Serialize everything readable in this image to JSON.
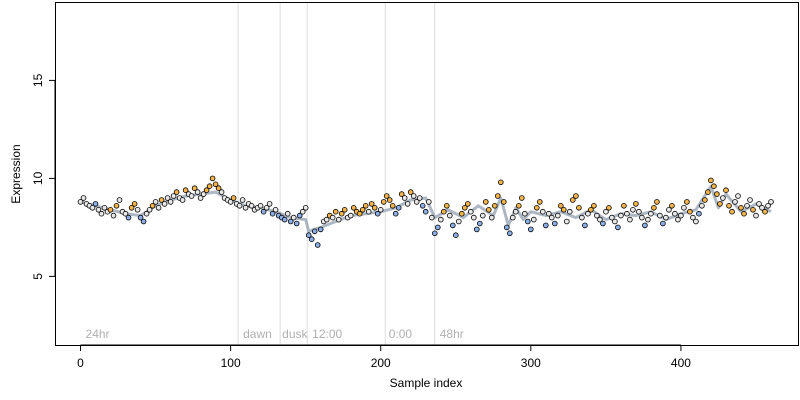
{
  "chart_data": {
    "type": "scatter",
    "title": "",
    "xlabel": "Sample index",
    "ylabel": "Expression",
    "xlim": [
      -17,
      478
    ],
    "ylim": [
      1.5,
      19
    ],
    "x_ticks": [
      0,
      100,
      200,
      300,
      400
    ],
    "y_ticks": [
      5,
      10,
      15
    ],
    "phase_boundaries": [
      105,
      133,
      151,
      203,
      236
    ],
    "phase_labels": [
      {
        "text": "24hr",
        "x": 2
      },
      {
        "text": "dawn",
        "x": 107
      },
      {
        "text": "dusk",
        "x": 133
      },
      {
        "text": "12:00",
        "x": 153
      },
      {
        "text": "0:00",
        "x": 204
      },
      {
        "text": "48hr",
        "x": 238
      }
    ],
    "colors": {
      "up": "#f5b449",
      "down": "#8caee6",
      "neutral": "#e8e8e8",
      "trend": "#9eaab8",
      "boundary": "#dcdcdc",
      "point_stroke": "#000000"
    },
    "trend_x": [
      0,
      10,
      20,
      30,
      40,
      50,
      60,
      70,
      80,
      90,
      100,
      110,
      120,
      130,
      140,
      150,
      152,
      160,
      170,
      180,
      190,
      200,
      210,
      220,
      230,
      236,
      245,
      255,
      265,
      275,
      280,
      285,
      290,
      295,
      300,
      310,
      320,
      330,
      340,
      350,
      360,
      370,
      380,
      390,
      400,
      410,
      420,
      425,
      430,
      440,
      450,
      460
    ],
    "trend_y": [
      8.8,
      8.6,
      8.4,
      8.2,
      8.1,
      8.6,
      8.9,
      9.1,
      9.2,
      9.3,
      8.9,
      8.6,
      8.5,
      8.3,
      8.0,
      7.9,
      7.3,
      7.5,
      7.8,
      8.1,
      8.2,
      8.3,
      8.5,
      8.9,
      9.0,
      8.0,
      8.4,
      8.0,
      8.6,
      8.1,
      9.0,
      7.6,
      8.5,
      7.9,
      8.3,
      8.1,
      8.3,
      8.0,
      8.4,
      7.9,
      8.2,
      8.1,
      8.3,
      7.9,
      8.2,
      8.4,
      9.6,
      8.5,
      9.2,
      8.3,
      8.7,
      8.3
    ],
    "points_x": [
      0,
      2,
      4,
      6,
      8,
      10,
      12,
      14,
      16,
      18,
      20,
      22,
      24,
      26,
      28,
      30,
      32,
      34,
      36,
      38,
      40,
      42,
      44,
      46,
      48,
      50,
      52,
      54,
      56,
      58,
      60,
      62,
      64,
      66,
      68,
      70,
      72,
      74,
      76,
      78,
      80,
      82,
      84,
      86,
      88,
      90,
      92,
      94,
      96,
      98,
      100,
      102,
      104,
      106,
      108,
      110,
      112,
      114,
      116,
      118,
      120,
      122,
      124,
      126,
      128,
      130,
      132,
      134,
      136,
      138,
      140,
      142,
      144,
      146,
      148,
      150,
      152,
      154,
      156,
      158,
      160,
      162,
      164,
      166,
      168,
      170,
      172,
      174,
      176,
      178,
      180,
      182,
      184,
      186,
      188,
      190,
      192,
      194,
      196,
      198,
      200,
      202,
      204,
      206,
      208,
      210,
      212,
      214,
      216,
      218,
      220,
      222,
      224,
      226,
      228,
      230,
      232,
      234,
      236,
      238,
      240,
      242,
      244,
      246,
      248,
      250,
      252,
      254,
      256,
      258,
      260,
      262,
      264,
      266,
      268,
      270,
      272,
      274,
      276,
      278,
      280,
      282,
      284,
      286,
      288,
      290,
      292,
      294,
      296,
      298,
      300,
      302,
      304,
      306,
      308,
      310,
      312,
      314,
      316,
      318,
      320,
      322,
      324,
      326,
      328,
      330,
      332,
      334,
      336,
      338,
      340,
      342,
      344,
      346,
      348,
      350,
      352,
      354,
      356,
      358,
      360,
      362,
      364,
      366,
      368,
      370,
      372,
      374,
      376,
      378,
      380,
      382,
      384,
      386,
      388,
      390,
      392,
      394,
      396,
      398,
      400,
      402,
      404,
      406,
      408,
      410,
      412,
      414,
      416,
      418,
      420,
      422,
      424,
      426,
      428,
      430,
      432,
      434,
      436,
      438,
      440,
      442,
      444,
      446,
      448,
      450,
      452,
      454,
      456,
      458,
      460
    ],
    "points_y": [
      8.8,
      9.0,
      8.7,
      8.6,
      8.5,
      8.7,
      8.4,
      8.2,
      8.5,
      8.3,
      8.4,
      8.1,
      8.6,
      8.9,
      8.3,
      8.2,
      8.0,
      8.5,
      8.7,
      8.4,
      8.0,
      7.8,
      8.2,
      8.4,
      8.6,
      8.8,
      8.5,
      8.9,
      8.7,
      9.0,
      8.8,
      9.1,
      9.3,
      9.0,
      8.9,
      9.4,
      9.2,
      9.1,
      9.5,
      9.3,
      9.0,
      9.2,
      9.4,
      9.6,
      10.0,
      9.7,
      9.5,
      9.3,
      9.0,
      8.9,
      8.8,
      9.0,
      8.7,
      8.6,
      8.9,
      8.5,
      8.7,
      8.6,
      8.4,
      8.5,
      8.6,
      8.3,
      8.5,
      8.7,
      8.2,
      8.4,
      8.1,
      8.0,
      7.9,
      8.2,
      7.8,
      8.0,
      7.7,
      8.1,
      8.3,
      8.5,
      7.1,
      6.9,
      7.3,
      6.6,
      7.4,
      7.8,
      7.9,
      8.1,
      8.0,
      8.3,
      7.9,
      8.2,
      8.4,
      8.0,
      8.1,
      8.5,
      8.3,
      8.2,
      8.4,
      8.6,
      8.3,
      8.7,
      8.5,
      8.2,
      8.4,
      8.8,
      9.1,
      8.9,
      8.6,
      8.2,
      8.5,
      9.2,
      9.0,
      8.7,
      9.3,
      9.1,
      8.8,
      9.0,
      8.6,
      8.3,
      8.8,
      8.0,
      7.2,
      7.5,
      7.9,
      8.3,
      8.6,
      8.1,
      7.6,
      7.1,
      7.8,
      8.2,
      8.5,
      8.7,
      8.3,
      8.0,
      7.4,
      7.7,
      8.1,
      8.8,
      8.4,
      8.0,
      8.6,
      9.1,
      9.8,
      8.8,
      7.5,
      7.2,
      8.0,
      8.3,
      8.6,
      9.0,
      8.2,
      7.8,
      7.4,
      7.9,
      8.5,
      8.8,
      8.3,
      7.6,
      8.2,
      8.0,
      7.7,
      8.1,
      8.6,
      8.4,
      7.8,
      8.3,
      8.9,
      9.1,
      8.5,
      8.0,
      7.6,
      8.2,
      8.4,
      8.6,
      8.1,
      7.9,
      7.7,
      8.3,
      8.5,
      8.0,
      7.8,
      7.5,
      8.1,
      8.6,
      8.2,
      7.9,
      8.4,
      8.7,
      8.3,
      8.0,
      7.6,
      7.9,
      8.2,
      8.5,
      8.8,
      8.1,
      7.7,
      8.0,
      8.4,
      8.6,
      8.2,
      7.9,
      8.1,
      8.5,
      8.8,
      8.3,
      8.0,
      7.8,
      8.2,
      8.6,
      8.9,
      9.3,
      9.9,
      9.6,
      9.2,
      8.7,
      9.0,
      9.4,
      8.6,
      8.3,
      8.8,
      9.1,
      8.5,
      8.2,
      8.6,
      8.9,
      8.4,
      8.1,
      8.7,
      8.5,
      8.3,
      8.6,
      8.8
    ],
    "point_colors": [
      "neutral",
      "neutral",
      "neutral",
      "neutral",
      "neutral",
      "down",
      "neutral",
      "neutral",
      "neutral",
      "neutral",
      "up",
      "neutral",
      "up",
      "neutral",
      "neutral",
      "neutral",
      "down",
      "up",
      "up",
      "neutral",
      "down",
      "down",
      "neutral",
      "neutral",
      "up",
      "neutral",
      "neutral",
      "up",
      "neutral",
      "neutral",
      "neutral",
      "neutral",
      "up",
      "neutral",
      "neutral",
      "up",
      "neutral",
      "neutral",
      "up",
      "neutral",
      "neutral",
      "neutral",
      "up",
      "up",
      "up",
      "up",
      "up",
      "neutral",
      "neutral",
      "neutral",
      "neutral",
      "up",
      "neutral",
      "neutral",
      "neutral",
      "neutral",
      "neutral",
      "neutral",
      "neutral",
      "neutral",
      "neutral",
      "down",
      "neutral",
      "neutral",
      "down",
      "neutral",
      "down",
      "down",
      "down",
      "neutral",
      "down",
      "neutral",
      "down",
      "down",
      "neutral",
      "neutral",
      "down",
      "down",
      "down",
      "down",
      "down",
      "neutral",
      "neutral",
      "up",
      "neutral",
      "up",
      "neutral",
      "up",
      "up",
      "neutral",
      "neutral",
      "up",
      "up",
      "up",
      "up",
      "up",
      "neutral",
      "up",
      "up",
      "down",
      "neutral",
      "up",
      "up",
      "up",
      "up",
      "down",
      "down",
      "up",
      "neutral",
      "neutral",
      "up",
      "neutral",
      "neutral",
      "neutral",
      "down",
      "down",
      "neutral",
      "neutral",
      "down",
      "down",
      "neutral",
      "up",
      "up",
      "neutral",
      "down",
      "down",
      "neutral",
      "up",
      "up",
      "up",
      "neutral",
      "neutral",
      "down",
      "down",
      "neutral",
      "up",
      "up",
      "neutral",
      "up",
      "up",
      "up",
      "up",
      "down",
      "down",
      "neutral",
      "neutral",
      "up",
      "up",
      "neutral",
      "down",
      "down",
      "neutral",
      "up",
      "up",
      "neutral",
      "down",
      "neutral",
      "neutral",
      "down",
      "neutral",
      "up",
      "up",
      "neutral",
      "neutral",
      "up",
      "up",
      "up",
      "neutral",
      "down",
      "neutral",
      "up",
      "up",
      "neutral",
      "neutral",
      "down",
      "neutral",
      "up",
      "neutral",
      "neutral",
      "down",
      "neutral",
      "up",
      "neutral",
      "neutral",
      "neutral",
      "up",
      "neutral",
      "neutral",
      "down",
      "neutral",
      "neutral",
      "up",
      "up",
      "neutral",
      "down",
      "neutral",
      "neutral",
      "up",
      "neutral",
      "neutral",
      "neutral",
      "neutral",
      "up",
      "up",
      "neutral",
      "neutral",
      "down",
      "neutral",
      "up",
      "up",
      "up",
      "up",
      "up",
      "up",
      "neutral",
      "up",
      "up",
      "up",
      "neutral",
      "neutral",
      "up",
      "up",
      "neutral",
      "neutral",
      "up",
      "neutral",
      "neutral",
      "neutral",
      "up",
      "neutral",
      "neutral",
      "neutral",
      "neutral"
    ]
  }
}
